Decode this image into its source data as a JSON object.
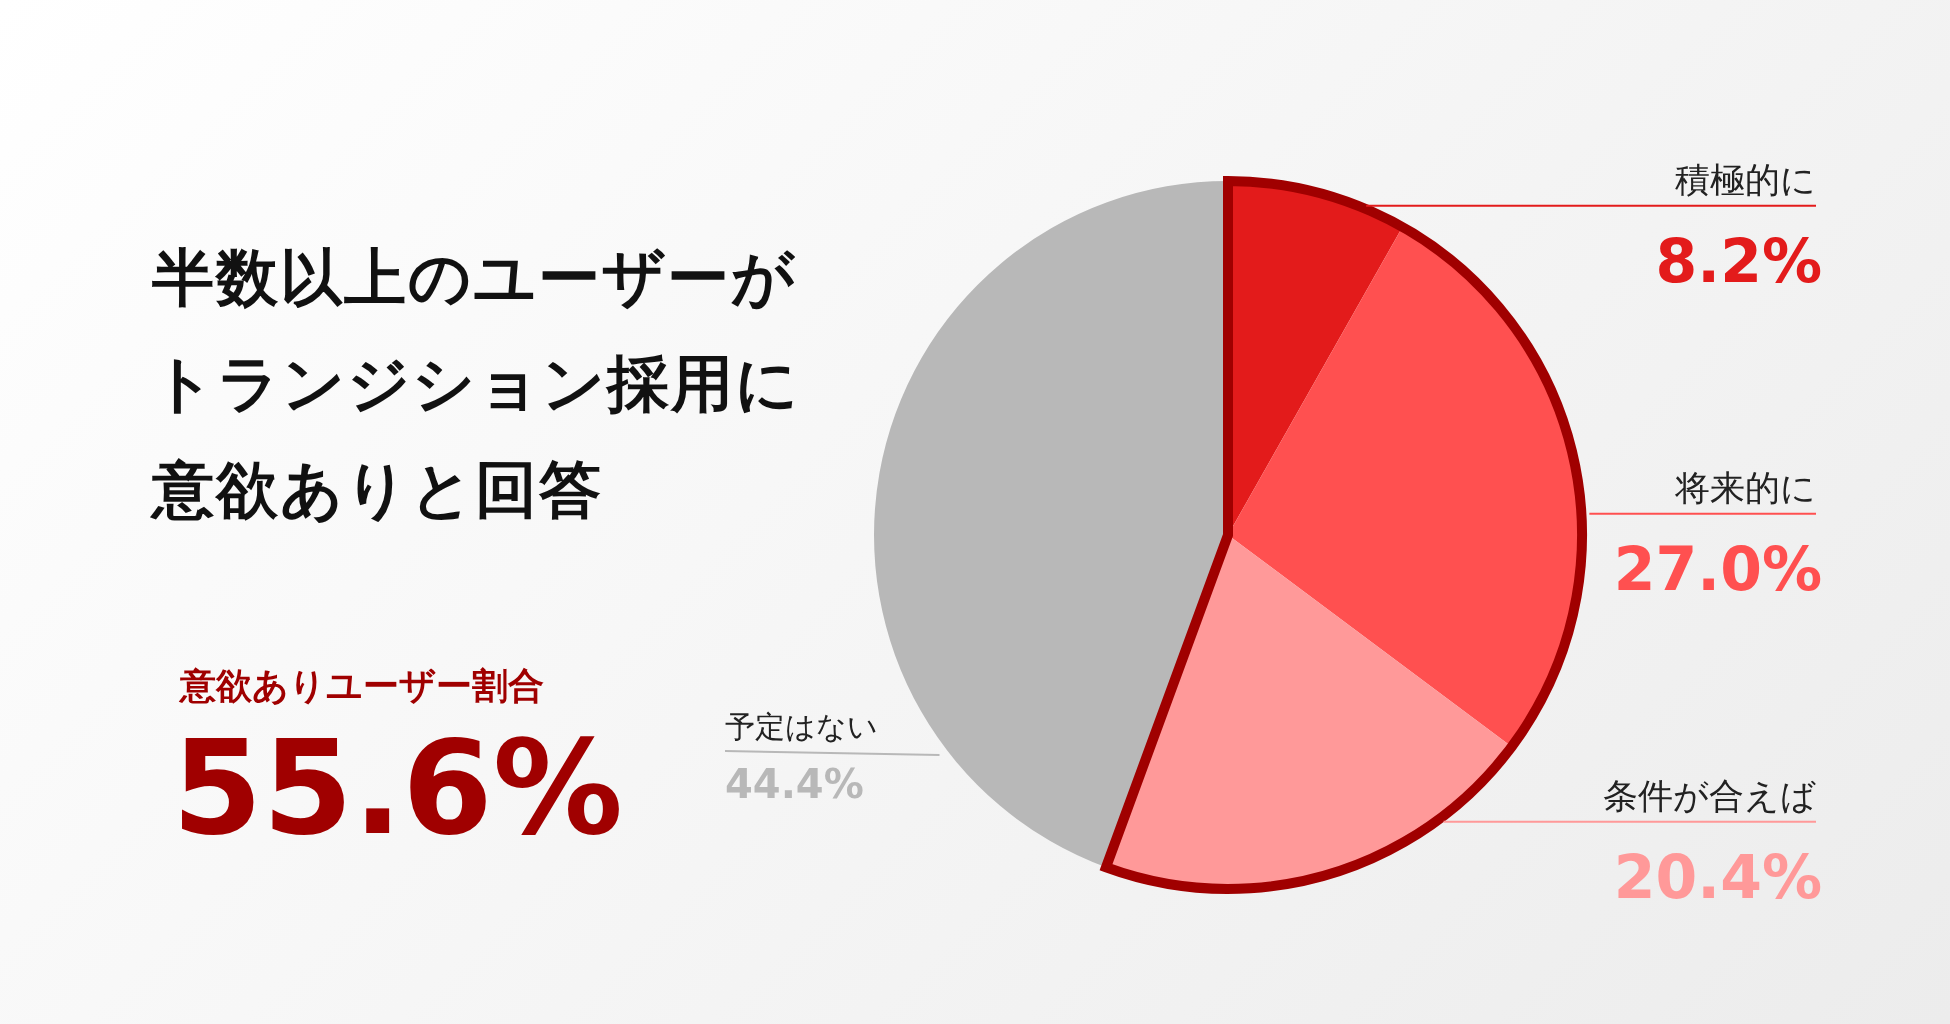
{
  "chart_data": {
    "type": "pie",
    "title": "半数以上のユーザーがトランジション採用に意欲ありと回答",
    "categories": [
      "積極的に",
      "将来的に",
      "条件が合えば",
      "予定はない"
    ],
    "values": [
      8.2,
      27.0,
      20.4,
      44.4
    ],
    "colors": [
      "#e31b1b",
      "#ff5050",
      "#ff9999",
      "#b8b8b8"
    ],
    "value_labels": [
      "8.2%",
      "27.0%",
      "20.4%",
      "44.4%"
    ],
    "annotations": [
      "意欲ありユーザー割合",
      "55.6%"
    ]
  }
}
